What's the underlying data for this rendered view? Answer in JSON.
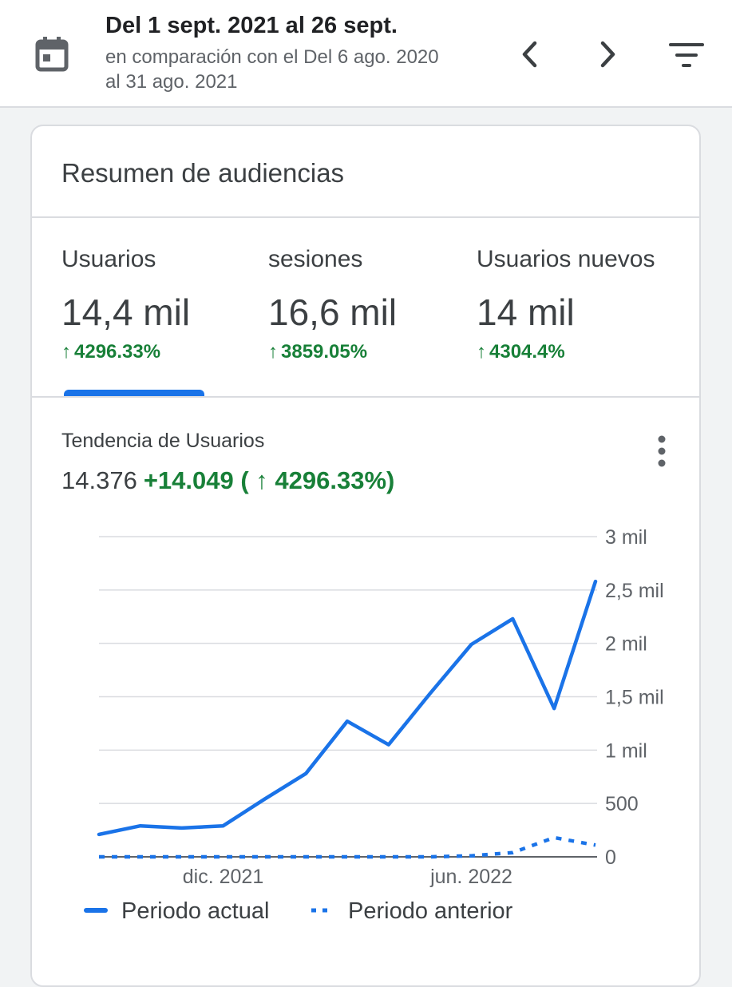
{
  "header": {
    "date_range": "Del 1 sept. 2021 al 26 sept.",
    "comparison_line1": "en comparación con el Del 6 ago. 2020",
    "comparison_line2": "al 31 ago. 2021",
    "icons": [
      "calendar-icon",
      "chevron-left-icon",
      "chevron-right-icon",
      "filter-icon"
    ]
  },
  "card": {
    "title": "Resumen de audiencias",
    "metrics": [
      {
        "label": "Usuarios",
        "value": "14,4 mil",
        "delta": "4296.33%"
      },
      {
        "label": "sesiones",
        "value": "16,6 mil",
        "delta": "3859.05%"
      },
      {
        "label": "Usuarios nuevos",
        "value": "14 mil",
        "delta": "4304.4%"
      }
    ],
    "selected_metric": "Usuarios",
    "trend": {
      "title": "Tendencia de Usuarios",
      "total": "14.376",
      "change": "+14.049 ( ↑ 4296.33%)"
    }
  },
  "colors": {
    "accent": "#1a73e8",
    "positive": "#188038",
    "text": "#3c4043",
    "muted": "#5f6368"
  },
  "chart_data": {
    "type": "line",
    "y_tick_labels": [
      "0",
      "500",
      "1 mil",
      "1,5 mil",
      "2 mil",
      "2,5 mil",
      "3 mil"
    ],
    "y_ticks": [
      0,
      500,
      1000,
      1500,
      2000,
      2500,
      3000
    ],
    "ylim": [
      0,
      3000
    ],
    "x_tick_labels": [
      {
        "label": "dic. 2021",
        "index": 3
      },
      {
        "label": "jun. 2022",
        "index": 9
      }
    ],
    "x_count": 13,
    "grid": true,
    "legend_position": "bottom",
    "series": [
      {
        "name": "Periodo actual",
        "style": "solid",
        "values": [
          210,
          290,
          270,
          290,
          540,
          780,
          1270,
          1050,
          1530,
          1990,
          2230,
          1390,
          2580
        ]
      },
      {
        "name": "Periodo anterior",
        "style": "dashed",
        "values": [
          0,
          0,
          0,
          0,
          0,
          0,
          0,
          0,
          0,
          10,
          40,
          180,
          110
        ]
      }
    ]
  }
}
